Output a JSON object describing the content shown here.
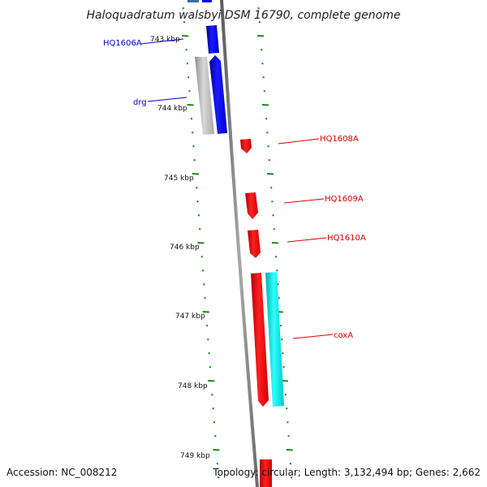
{
  "title": "Haloquadratum walsbyi DSM 16790, complete genome",
  "footer": {
    "accession": "Accession: NC_008212",
    "summary": "Topology: circular; Length: 3,132,494 bp; Genes: 2,662"
  },
  "colors": {
    "backbone": "#7a7a7a",
    "ticks": "#1a8a1a",
    "forward_gene": "#0000ee",
    "reverse_gene": "#ee0000",
    "rna": "#00e5e5",
    "pseudo": "#b0b0b0"
  },
  "scale": {
    "unit": "kbp",
    "labels": [
      "743 kbp",
      "744 kbp",
      "745 kbp",
      "746 kbp",
      "747 kbp",
      "748 kbp",
      "749 kbp"
    ]
  },
  "genes": [
    {
      "name": "HQ1606A",
      "strand": "forward",
      "color": "#0000ee"
    },
    {
      "name": "drg",
      "strand": "forward",
      "color": "#0000ee"
    },
    {
      "name": "HQ1608A",
      "strand": "reverse",
      "color": "#ee0000"
    },
    {
      "name": "HQ1609A",
      "strand": "reverse",
      "color": "#ee0000"
    },
    {
      "name": "HQ1610A",
      "strand": "reverse",
      "color": "#ee0000"
    },
    {
      "name": "coxA",
      "strand": "reverse",
      "color": "#ee0000"
    }
  ]
}
